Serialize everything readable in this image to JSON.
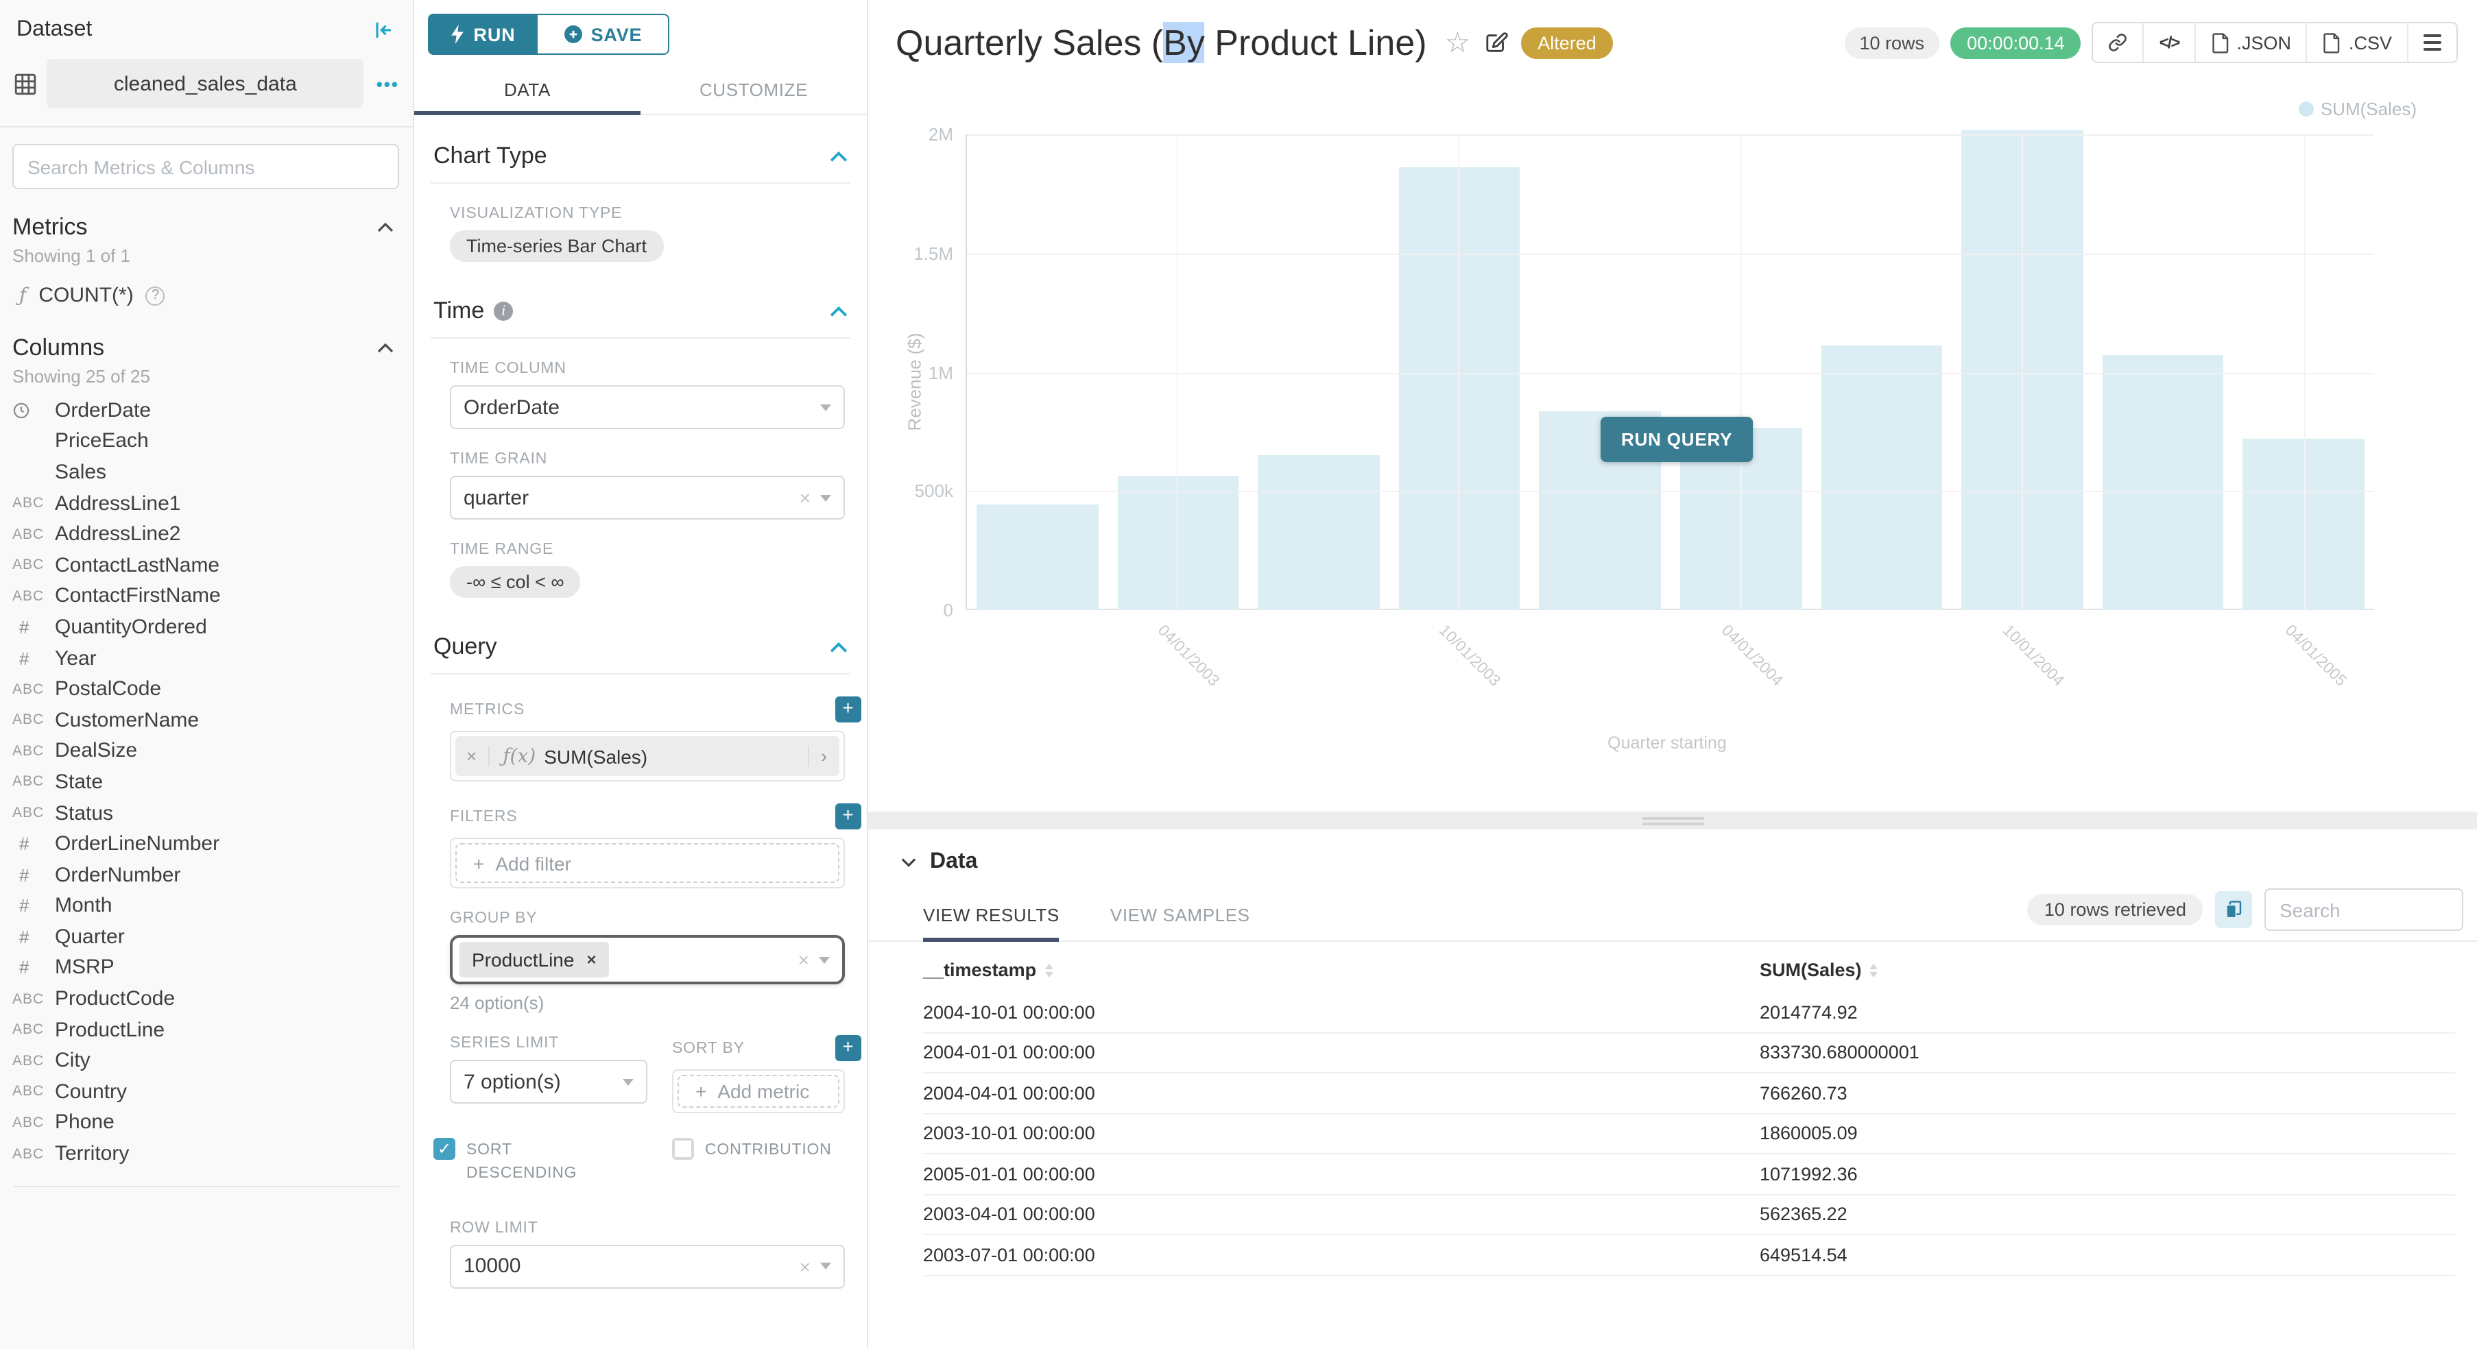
{
  "glyphs": {
    "more_dots": "•••",
    "close": "×",
    "plus": "+",
    "star": "☆",
    "check": "✓",
    "question": "?",
    "info": "i",
    "code": "</>"
  },
  "dataset_panel": {
    "title": "Dataset",
    "dataset_name": "cleaned_sales_data",
    "search_placeholder": "Search Metrics & Columns",
    "metrics": {
      "heading": "Metrics",
      "showing": "Showing 1 of 1",
      "metric_prefix": "ƒ",
      "metric_name": "COUNT(*)"
    },
    "columns": {
      "heading": "Columns",
      "showing": "Showing 25 of 25",
      "items": [
        {
          "type": "time",
          "name": "OrderDate"
        },
        {
          "type": "none",
          "name": "PriceEach"
        },
        {
          "type": "none",
          "name": "Sales"
        },
        {
          "type": "abc",
          "name": "AddressLine1"
        },
        {
          "type": "abc",
          "name": "AddressLine2"
        },
        {
          "type": "abc",
          "name": "ContactLastName"
        },
        {
          "type": "abc",
          "name": "ContactFirstName"
        },
        {
          "type": "num",
          "name": "QuantityOrdered"
        },
        {
          "type": "num",
          "name": "Year"
        },
        {
          "type": "abc",
          "name": "PostalCode"
        },
        {
          "type": "abc",
          "name": "CustomerName"
        },
        {
          "type": "abc",
          "name": "DealSize"
        },
        {
          "type": "abc",
          "name": "State"
        },
        {
          "type": "abc",
          "name": "Status"
        },
        {
          "type": "num",
          "name": "OrderLineNumber"
        },
        {
          "type": "num",
          "name": "OrderNumber"
        },
        {
          "type": "num",
          "name": "Month"
        },
        {
          "type": "num",
          "name": "Quarter"
        },
        {
          "type": "num",
          "name": "MSRP"
        },
        {
          "type": "abc",
          "name": "ProductCode"
        },
        {
          "type": "abc",
          "name": "ProductLine"
        },
        {
          "type": "abc",
          "name": "City"
        },
        {
          "type": "abc",
          "name": "Country"
        },
        {
          "type": "abc",
          "name": "Phone"
        },
        {
          "type": "abc",
          "name": "Territory"
        }
      ]
    }
  },
  "control_panel": {
    "run_label": "RUN",
    "save_label": "SAVE",
    "tabs": {
      "data": "DATA",
      "customize": "CUSTOMIZE"
    },
    "chart_type": {
      "heading": "Chart Type",
      "viz_label": "VISUALIZATION TYPE",
      "viz_value": "Time-series Bar Chart"
    },
    "time": {
      "heading": "Time",
      "column_label": "TIME COLUMN",
      "column_value": "OrderDate",
      "grain_label": "TIME GRAIN",
      "grain_value": "quarter",
      "range_label": "TIME RANGE",
      "range_value": "-∞ ≤ col < ∞"
    },
    "query": {
      "heading": "Query",
      "metrics_label": "METRICS",
      "metric_fx": "ƒ(x)",
      "metric_value": "SUM(Sales)",
      "filters_label": "FILTERS",
      "add_filter": "Add filter",
      "group_by_label": "GROUP BY",
      "group_by_value": "ProductLine",
      "options_hint": "24 option(s)",
      "series_limit_label": "SERIES LIMIT",
      "series_limit_value": "7 option(s)",
      "sort_by_label": "SORT BY",
      "add_metric": "Add metric",
      "sort_descending_label": "SORT DESCENDING",
      "contribution_label": "CONTRIBUTION",
      "row_limit_label": "ROW LIMIT",
      "row_limit_value": "10000"
    }
  },
  "header": {
    "title_pre": "Quarterly Sales (",
    "title_selected": "By",
    "title_rest": " Product Line)",
    "altered_badge": "Altered",
    "rows_pill": "10 rows",
    "timer": "00:00:00.14",
    "json_label": ".JSON",
    "csv_label": ".CSV"
  },
  "chart_data": {
    "type": "bar",
    "title": "Quarterly Sales (By Product Line)",
    "series_name": "SUM(Sales)",
    "x": [
      "2003-01-01",
      "2003-04-01",
      "2003-07-01",
      "2003-10-01",
      "2004-01-01",
      "2004-04-01",
      "2004-07-01",
      "2004-10-01",
      "2005-01-01",
      "2005-04-01"
    ],
    "values": [
      445000,
      562365.22,
      649514.54,
      1860005.09,
      833730.68,
      766260.73,
      1110000,
      2014774.92,
      1071992.36,
      718000
    ],
    "ylabel": "Revenue ($)",
    "xlabel": "Quarter starting",
    "ylim": [
      0,
      2000000
    ],
    "yticks": [
      "0",
      "500k",
      "1M",
      "1.5M",
      "2M"
    ],
    "x_tick_labels": [
      "04/01/2003",
      "10/01/2003",
      "04/01/2004",
      "10/01/2004",
      "04/01/2005"
    ],
    "x_tick_bar_indices": [
      1,
      3,
      5,
      7,
      9
    ],
    "legend_position": "top-right",
    "grid": true,
    "bar_color": "#dcedf3",
    "run_query_label": "RUN QUERY"
  },
  "data_panel": {
    "heading": "Data",
    "tabs": {
      "results": "VIEW RESULTS",
      "samples": "VIEW SAMPLES"
    },
    "rows_retrieved": "10 rows retrieved",
    "search_placeholder": "Search",
    "table": {
      "columns": [
        "__timestamp",
        "SUM(Sales)"
      ],
      "rows": [
        [
          "2004-10-01 00:00:00",
          "2014774.92"
        ],
        [
          "2004-01-01 00:00:00",
          "833730.680000001"
        ],
        [
          "2004-04-01 00:00:00",
          "766260.73"
        ],
        [
          "2003-10-01 00:00:00",
          "1860005.09"
        ],
        [
          "2005-01-01 00:00:00",
          "1071992.36"
        ],
        [
          "2003-04-01 00:00:00",
          "562365.22"
        ],
        [
          "2003-07-01 00:00:00",
          "649514.54"
        ]
      ]
    }
  },
  "colors": {
    "accent_teal": "#2e7f9e",
    "bright_teal": "#20a7c9",
    "tab_underline": "#47536e",
    "success_green": "#5ac189",
    "altered_gold": "#c9a23c",
    "bar_fill": "#dcedf3",
    "run_query_button": "#3a7d92"
  }
}
